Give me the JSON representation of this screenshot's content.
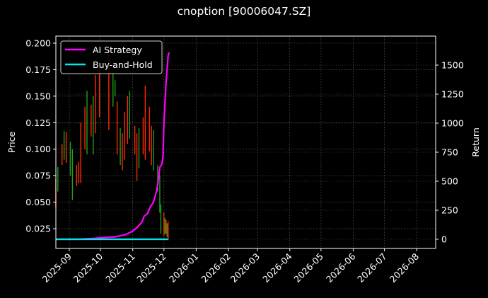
{
  "title": "cnoption [90006047.SZ]",
  "chart_data": {
    "type": "candlestick+line",
    "title": "cnoption [90006047.SZ]",
    "xlabel": "",
    "ylabel_left": "Price",
    "ylabel_right": "Return",
    "x_tick_labels": [
      "2025-09",
      "2025-10",
      "2025-11",
      "2025-12",
      "2026-01",
      "2026-02",
      "2026-03",
      "2026-04",
      "2026-05",
      "2026-06",
      "2026-07",
      "2026-08"
    ],
    "y_left_ticks": [
      "0.025",
      "0.050",
      "0.075",
      "0.100",
      "0.125",
      "0.150",
      "0.175",
      "0.200"
    ],
    "y_left_range": [
      0.007,
      0.206
    ],
    "y_right_ticks": [
      "0",
      "250",
      "500",
      "750",
      "1000",
      "1250",
      "1500"
    ],
    "y_right_range": [
      -75,
      1740
    ],
    "grid": true,
    "legend_position": "upper left",
    "legend": [
      {
        "label": "AI Strategy",
        "color": "#ff00ff"
      },
      {
        "label": "Buy-and-Hold",
        "color": "#00e5ee"
      }
    ],
    "colors": {
      "up": "#ff2a00",
      "down": "#1e9e1e",
      "background": "#000000",
      "grid": "#555555"
    },
    "candles_approx": [
      {
        "date": "2025-08-19",
        "low": 0.045,
        "high": 0.072,
        "dir": "up"
      },
      {
        "date": "2025-08-21",
        "low": 0.06,
        "high": 0.083,
        "dir": "down"
      },
      {
        "date": "2025-08-25",
        "low": 0.085,
        "high": 0.105,
        "dir": "up"
      },
      {
        "date": "2025-08-27",
        "low": 0.09,
        "high": 0.117,
        "dir": "down"
      },
      {
        "date": "2025-08-29",
        "low": 0.087,
        "high": 0.116,
        "dir": "up"
      },
      {
        "date": "2025-09-02",
        "low": 0.075,
        "high": 0.107,
        "dir": "down"
      },
      {
        "date": "2025-09-04",
        "low": 0.052,
        "high": 0.1,
        "dir": "down"
      },
      {
        "date": "2025-09-08",
        "low": 0.065,
        "high": 0.085,
        "dir": "up"
      },
      {
        "date": "2025-09-10",
        "low": 0.068,
        "high": 0.088,
        "dir": "up"
      },
      {
        "date": "2025-09-12",
        "low": 0.068,
        "high": 0.125,
        "dir": "up"
      },
      {
        "date": "2025-09-16",
        "low": 0.1,
        "high": 0.14,
        "dir": "up"
      },
      {
        "date": "2025-09-18",
        "low": 0.095,
        "high": 0.155,
        "dir": "down"
      },
      {
        "date": "2025-09-22",
        "low": 0.112,
        "high": 0.142,
        "dir": "up"
      },
      {
        "date": "2025-09-24",
        "low": 0.095,
        "high": 0.15,
        "dir": "down"
      },
      {
        "date": "2025-09-26",
        "low": 0.115,
        "high": 0.17,
        "dir": "up"
      },
      {
        "date": "2025-09-30",
        "low": 0.13,
        "high": 0.178,
        "dir": "up"
      },
      {
        "date": "2025-10-09",
        "low": 0.118,
        "high": 0.19,
        "dir": "up"
      },
      {
        "date": "2025-10-13",
        "low": 0.14,
        "high": 0.172,
        "dir": "down"
      },
      {
        "date": "2025-10-15",
        "low": 0.15,
        "high": 0.165,
        "dir": "down"
      },
      {
        "date": "2025-10-17",
        "low": 0.095,
        "high": 0.145,
        "dir": "up"
      },
      {
        "date": "2025-10-20",
        "low": 0.085,
        "high": 0.12,
        "dir": "down"
      },
      {
        "date": "2025-10-22",
        "low": 0.08,
        "high": 0.115,
        "dir": "up"
      },
      {
        "date": "2025-10-24",
        "low": 0.09,
        "high": 0.135,
        "dir": "up"
      },
      {
        "date": "2025-10-27",
        "low": 0.105,
        "high": 0.15,
        "dir": "up"
      },
      {
        "date": "2025-10-29",
        "low": 0.11,
        "high": 0.155,
        "dir": "down"
      },
      {
        "date": "2025-11-03",
        "low": 0.095,
        "high": 0.122,
        "dir": "up"
      },
      {
        "date": "2025-11-05",
        "low": 0.07,
        "high": 0.115,
        "dir": "up"
      },
      {
        "date": "2025-11-07",
        "low": 0.082,
        "high": 0.12,
        "dir": "down"
      },
      {
        "date": "2025-11-11",
        "low": 0.095,
        "high": 0.13,
        "dir": "up"
      },
      {
        "date": "2025-11-13",
        "low": 0.09,
        "high": 0.16,
        "dir": "up"
      },
      {
        "date": "2025-11-17",
        "low": 0.098,
        "high": 0.14,
        "dir": "up"
      },
      {
        "date": "2025-11-19",
        "low": 0.085,
        "high": 0.122,
        "dir": "up"
      },
      {
        "date": "2025-11-21",
        "low": 0.08,
        "high": 0.118,
        "dir": "down"
      },
      {
        "date": "2025-11-25",
        "low": 0.06,
        "high": 0.085,
        "dir": "down"
      },
      {
        "date": "2025-11-27",
        "low": 0.04,
        "high": 0.075,
        "dir": "down"
      },
      {
        "date": "2025-11-28",
        "low": 0.02,
        "high": 0.048,
        "dir": "down"
      },
      {
        "date": "2025-12-01",
        "low": 0.018,
        "high": 0.04,
        "dir": "up"
      },
      {
        "date": "2025-12-02",
        "low": 0.02,
        "high": 0.035,
        "dir": "down"
      },
      {
        "date": "2025-12-03",
        "low": 0.02,
        "high": 0.033,
        "dir": "up"
      },
      {
        "date": "2025-12-04",
        "low": 0.017,
        "high": 0.03,
        "dir": "down"
      },
      {
        "date": "2025-12-05",
        "low": 0.014,
        "high": 0.032,
        "dir": "up"
      }
    ],
    "series": [
      {
        "name": "AI Strategy",
        "axis": "right",
        "color": "#ff00ff",
        "points": [
          [
            "2025-08-19",
            0
          ],
          [
            "2025-09-10",
            0
          ],
          [
            "2025-09-25",
            8
          ],
          [
            "2025-10-05",
            15
          ],
          [
            "2025-10-15",
            20
          ],
          [
            "2025-10-25",
            40
          ],
          [
            "2025-11-01",
            70
          ],
          [
            "2025-11-05",
            100
          ],
          [
            "2025-11-10",
            150
          ],
          [
            "2025-11-12",
            200
          ],
          [
            "2025-11-15",
            220
          ],
          [
            "2025-11-18",
            280
          ],
          [
            "2025-11-21",
            320
          ],
          [
            "2025-11-24",
            420
          ],
          [
            "2025-11-26",
            530
          ],
          [
            "2025-11-27",
            620
          ],
          [
            "2025-11-28",
            630
          ],
          [
            "2025-11-29",
            650
          ],
          [
            "2025-11-30",
            700
          ],
          [
            "2025-12-01",
            1000
          ],
          [
            "2025-12-03",
            1350
          ],
          [
            "2025-12-05",
            1580
          ],
          [
            "2025-12-06",
            1610
          ]
        ]
      },
      {
        "name": "Buy-and-Hold",
        "axis": "right",
        "color": "#00e5ee",
        "points": [
          [
            "2025-08-19",
            0
          ],
          [
            "2025-12-05",
            0
          ]
        ]
      }
    ]
  }
}
